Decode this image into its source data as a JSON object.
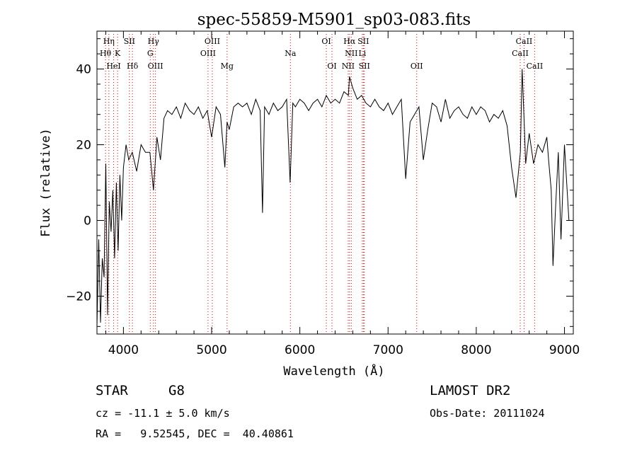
{
  "chart_data": {
    "type": "line",
    "title": "spec-55859-M5901_sp03-083.fits",
    "xlabel": "Wavelength (Å)",
    "ylabel": "Flux (relative)",
    "xlim": [
      3700,
      9100
    ],
    "ylim": [
      -30,
      50
    ],
    "xticks": [
      4000,
      5000,
      6000,
      7000,
      8000,
      9000
    ],
    "yticks": [
      -20,
      0,
      20,
      40
    ],
    "series": [
      {
        "x": [
          3700,
          3720,
          3740,
          3760,
          3780,
          3800,
          3820,
          3840,
          3860,
          3880,
          3900,
          3920,
          3940,
          3960,
          3980,
          4000,
          4030,
          4060,
          4100,
          4150,
          4200,
          4250,
          4300,
          4340,
          4380,
          4420,
          4460,
          4500,
          4550,
          4600,
          4650,
          4700,
          4750,
          4800,
          4850,
          4900,
          4950,
          5000,
          5050,
          5100,
          5150,
          5175,
          5200,
          5250,
          5300,
          5350,
          5400,
          5450,
          5500,
          5550,
          5577,
          5600,
          5650,
          5700,
          5750,
          5800,
          5850,
          5890,
          5920,
          5950,
          6000,
          6050,
          6100,
          6150,
          6200,
          6250,
          6300,
          6350,
          6400,
          6450,
          6500,
          6550,
          6563,
          6600,
          6650,
          6700,
          6750,
          6800,
          6850,
          6900,
          6950,
          7000,
          7050,
          7100,
          7150,
          7200,
          7250,
          7300,
          7350,
          7400,
          7450,
          7500,
          7550,
          7600,
          7650,
          7700,
          7750,
          7800,
          7850,
          7900,
          7950,
          8000,
          8050,
          8100,
          8150,
          8200,
          8250,
          8300,
          8350,
          8400,
          8450,
          8500,
          8520,
          8540,
          8560,
          8600,
          8650,
          8700,
          8750,
          8800,
          8820,
          8850,
          8870,
          8900,
          8930,
          8960,
          9000,
          9050
        ],
        "y": [
          -28,
          -5,
          -27,
          -10,
          -15,
          15,
          -25,
          5,
          -3,
          8,
          -10,
          10,
          -8,
          12,
          0,
          14,
          20,
          16,
          18,
          13,
          20,
          18,
          18,
          8,
          22,
          16,
          27,
          29,
          28,
          30,
          27,
          31,
          29,
          28,
          30,
          27,
          29,
          22,
          30,
          28,
          14,
          26,
          24,
          30,
          31,
          30,
          31,
          28,
          32,
          29,
          2,
          30,
          28,
          31,
          29,
          30,
          32,
          10,
          31,
          30,
          32,
          31,
          29,
          31,
          32,
          30,
          33,
          31,
          32,
          31,
          34,
          33,
          38,
          35,
          32,
          33,
          31,
          30,
          32,
          30,
          29,
          31,
          28,
          30,
          32,
          11,
          26,
          28,
          30,
          16,
          24,
          31,
          30,
          26,
          32,
          27,
          29,
          30,
          28,
          27,
          30,
          28,
          30,
          29,
          26,
          28,
          27,
          29,
          25,
          14,
          6,
          18,
          40,
          28,
          15,
          23,
          15,
          20,
          18,
          22,
          16,
          8,
          -12,
          4,
          18,
          -5,
          20,
          0
        ]
      }
    ],
    "line_labels": [
      {
        "label": "Hη",
        "row": 1,
        "x": 3835
      },
      {
        "label": "Hθ",
        "row": 2,
        "x": 3797
      },
      {
        "label": "K",
        "row": 2,
        "x": 3934
      },
      {
        "label": "HeI",
        "row": 3,
        "x": 3889
      },
      {
        "label": "SII",
        "row": 1,
        "x": 4068
      },
      {
        "label": "Hδ",
        "row": 3,
        "x": 4102
      },
      {
        "label": "Hγ",
        "row": 1,
        "x": 4340
      },
      {
        "label": "G",
        "row": 2,
        "x": 4304
      },
      {
        "label": "OIII",
        "row": 3,
        "x": 4363
      },
      {
        "label": "OIII",
        "row": 1,
        "x": 5007
      },
      {
        "label": "OIII",
        "row": 2,
        "x": 4959
      },
      {
        "label": "Mg",
        "row": 3,
        "x": 5175
      },
      {
        "label": "Na",
        "row": 2,
        "x": 5893
      },
      {
        "label": "OI",
        "row": 1,
        "x": 6300
      },
      {
        "label": "OI",
        "row": 3,
        "x": 6364
      },
      {
        "label": "Hα",
        "row": 1,
        "x": 6563
      },
      {
        "label": "SII",
        "row": 1,
        "x": 6720
      },
      {
        "label": "NII",
        "row": 2,
        "x": 6583
      },
      {
        "label": "Li",
        "row": 2,
        "x": 6708
      },
      {
        "label": "NII",
        "row": 3,
        "x": 6548
      },
      {
        "label": "SII",
        "row": 3,
        "x": 6731
      },
      {
        "label": "OII",
        "row": 3,
        "x": 7325
      },
      {
        "label": "CaII",
        "row": 1,
        "x": 8542
      },
      {
        "label": "CaII",
        "row": 2,
        "x": 8498
      },
      {
        "label": "CaII",
        "row": 3,
        "x": 8662
      }
    ],
    "line_marker_color": "#cc0000",
    "line_color": "#000000"
  },
  "info": {
    "class_label": "STAR",
    "subclass_label": "G8",
    "survey_label": "LAMOST DR2",
    "cz_line": "cz = -11.1 ± 5.0 km/s",
    "obs_date_line": "Obs-Date: 20111024",
    "coords_line": "RA =   9.52545, DEC =  40.40861"
  }
}
